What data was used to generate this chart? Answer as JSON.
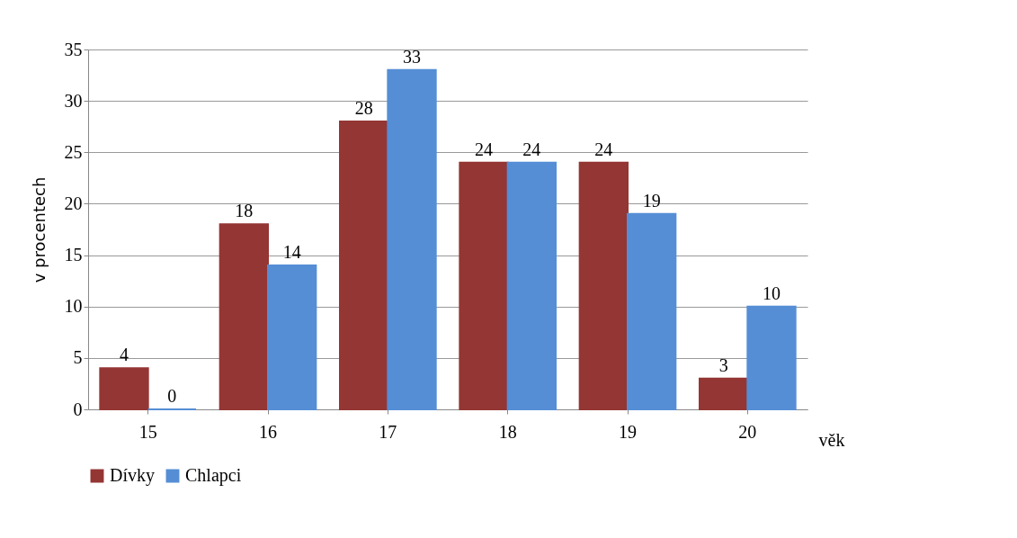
{
  "chart_data": {
    "type": "bar",
    "xlabel": "věk",
    "ylabel": "v procentech",
    "categories": [
      "15",
      "16",
      "17",
      "18",
      "19",
      "20"
    ],
    "series": [
      {
        "name": "Dívky",
        "color": "#943634",
        "values": [
          4,
          18,
          28,
          24,
          24,
          3
        ]
      },
      {
        "name": "Chlapci",
        "color": "#558ed5",
        "values": [
          0,
          14,
          33,
          24,
          19,
          10
        ]
      }
    ],
    "ylim": [
      0,
      35
    ],
    "yticks": [
      0,
      5,
      10,
      15,
      20,
      25,
      30,
      35
    ],
    "grid": "y",
    "legend": "bottom",
    "data_labels": true
  }
}
